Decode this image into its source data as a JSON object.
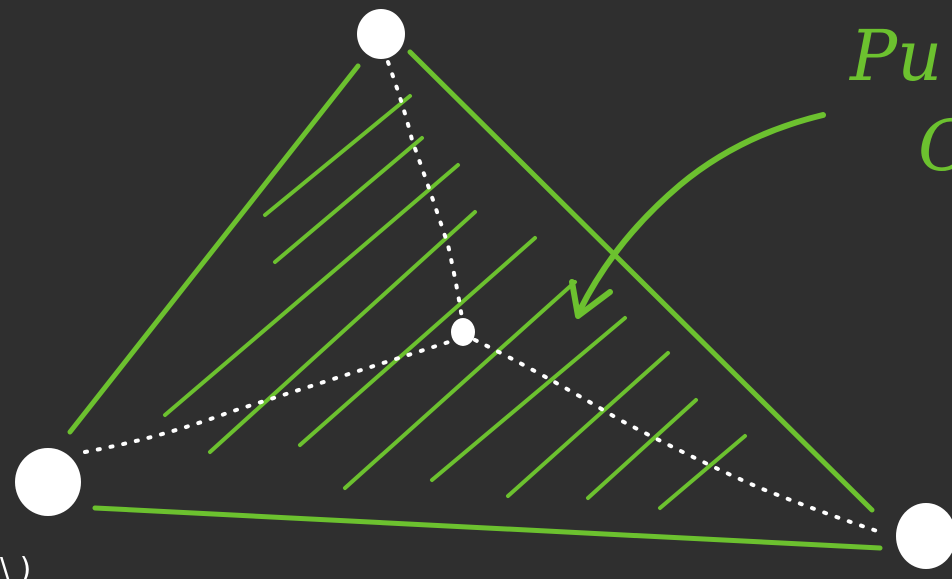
{
  "theme": {
    "background": "#2f2f2f",
    "stroke_green": "#6cc12f",
    "point_white": "#ffffff"
  },
  "diagram": {
    "type": "hand-drawn-sketch",
    "shapes": [
      "triangle",
      "hatching",
      "dotted-lines-to-center",
      "arrow"
    ],
    "annotation_text": {
      "line1": "Pu",
      "line2": "C"
    },
    "edge_fragment": "\\ )"
  }
}
